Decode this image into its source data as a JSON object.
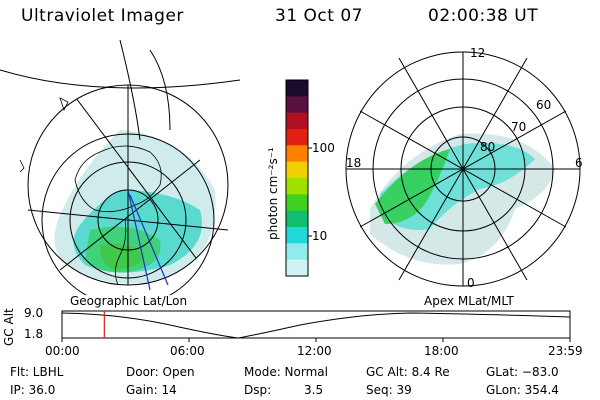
{
  "header": {
    "instrument": "Ultraviolet Imager",
    "date": "31 Oct 07",
    "time": "02:00:38 UT"
  },
  "left_map": {
    "label": "Geographic Lat/Lon"
  },
  "right_map": {
    "label": "Apex  MLat/MLT",
    "mlt_labels": [
      "12",
      "18",
      "6",
      "0"
    ],
    "lat_labels": [
      "60",
      "70",
      "80"
    ]
  },
  "colorbar": {
    "unit_label": "photon cm⁻²s⁻¹",
    "ticks": [
      "100",
      "10"
    ],
    "colors": [
      "#1a0a2e",
      "#5a1040",
      "#b01020",
      "#e02010",
      "#ff8000",
      "#f0d000",
      "#a0e000",
      "#40d020",
      "#10c070",
      "#20d8d8",
      "#90ecec",
      "#d0f2f2"
    ]
  },
  "timeline": {
    "ylabel": "GC Alt",
    "yticks": [
      "9.0",
      "1.8"
    ],
    "xticks": [
      "00:00",
      "06:00",
      "12:00",
      "18:00",
      "23:59"
    ],
    "current_marker_hours": 2.0
  },
  "info": {
    "flt": "Flt: LBHL",
    "ip": "IP: 36.0",
    "door": "Door: Open",
    "gain": "Gain: 14",
    "mode": "Mode: Normal",
    "dsp_label": "Dsp:",
    "dsp_value": "3.5",
    "gcalt": "GC Alt: 8.4 Re",
    "seq": "Seq: 39",
    "glat": "GLat: −83.0",
    "glon": "GLon: 354.4"
  }
}
